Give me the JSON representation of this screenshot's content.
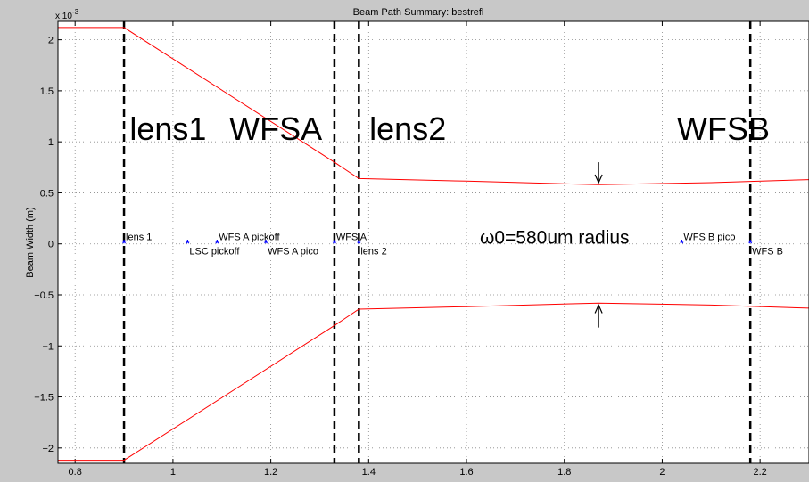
{
  "chart_data": {
    "type": "line",
    "title": "Beam Path Summary: bestrefl",
    "ylabel": "Beam Width (m)",
    "xlabel": "",
    "y_exponent_label": "x 10",
    "y_exponent_power": "-3",
    "xlim": [
      0.765,
      2.3
    ],
    "ylim": [
      -2.15,
      2.18
    ],
    "y_scale_factor": 0.001,
    "grid": true,
    "x_ticks": [
      {
        "value": 0.8,
        "label": "0.8"
      },
      {
        "value": 1.0,
        "label": "1"
      },
      {
        "value": 1.2,
        "label": "1.2"
      },
      {
        "value": 1.4,
        "label": "1.4"
      },
      {
        "value": 1.6,
        "label": "1.6"
      },
      {
        "value": 1.8,
        "label": "1.8"
      },
      {
        "value": 2.0,
        "label": "2"
      },
      {
        "value": 2.2,
        "label": "2.2"
      }
    ],
    "y_ticks": [
      {
        "value": 2.0,
        "label": "2"
      },
      {
        "value": 1.5,
        "label": "1.5"
      },
      {
        "value": 1.0,
        "label": "1"
      },
      {
        "value": 0.5,
        "label": "0.5"
      },
      {
        "value": 0.0,
        "label": "0"
      },
      {
        "value": -0.5,
        "label": "−0.5"
      },
      {
        "value": -1.0,
        "label": "−1"
      },
      {
        "value": -1.5,
        "label": "−1.5"
      },
      {
        "value": -2.0,
        "label": "−2"
      }
    ],
    "series": [
      {
        "color": "#ff0000",
        "x": [
          0.765,
          0.9,
          1.33,
          1.38,
          1.6,
          1.87,
          2.1,
          2.3
        ],
        "y": [
          2.12,
          2.12,
          0.8,
          0.64,
          0.615,
          0.58,
          0.6,
          0.63
        ]
      },
      {
        "color": "#ff0000",
        "x": [
          0.765,
          0.9,
          1.33,
          1.38,
          1.6,
          1.87,
          2.1,
          2.3
        ],
        "y": [
          -2.12,
          -2.12,
          -0.8,
          -0.64,
          -0.615,
          -0.58,
          -0.6,
          -0.63
        ]
      }
    ],
    "points": [
      {
        "name": "lens 1",
        "x": 0.9,
        "y": 0,
        "anchor": "right-up"
      },
      {
        "name": "LSC pickoff",
        "x": 1.03,
        "y": 0,
        "anchor": "right-down"
      },
      {
        "name": "WFS A pickoff",
        "x": 1.09,
        "y": 0,
        "anchor": "right-up"
      },
      {
        "name": "WFS A pico",
        "x": 1.19,
        "y": 0,
        "anchor": "right-down"
      },
      {
        "name": "WFS A",
        "x": 1.33,
        "y": 0,
        "anchor": "right-up"
      },
      {
        "name": "lens 2",
        "x": 1.38,
        "y": 0,
        "anchor": "right-down"
      },
      {
        "name": "WFS B pico",
        "x": 2.04,
        "y": 0,
        "anchor": "right-up"
      },
      {
        "name": "WFS B",
        "x": 2.18,
        "y": 0,
        "anchor": "right-down"
      }
    ],
    "point_color": "#0000ff",
    "vertical_markers": [
      0.9,
      1.33,
      1.38,
      2.18
    ],
    "annotations": [
      {
        "text": "lens1",
        "x": 0.99,
        "y": 1.02
      },
      {
        "text": "WFSA",
        "x": 1.21,
        "y": 1.02
      },
      {
        "text": "lens2",
        "x": 1.48,
        "y": 1.02
      },
      {
        "text": "WFSB",
        "x": 2.125,
        "y": 1.02
      },
      {
        "text": "ω0=580um radius",
        "x": 1.78,
        "y": 0.0
      }
    ],
    "arrows": [
      {
        "x": 1.87,
        "y_from": 0.8,
        "y_to": 0.6
      },
      {
        "x": 1.87,
        "y_from": -0.82,
        "y_to": -0.6
      }
    ]
  }
}
